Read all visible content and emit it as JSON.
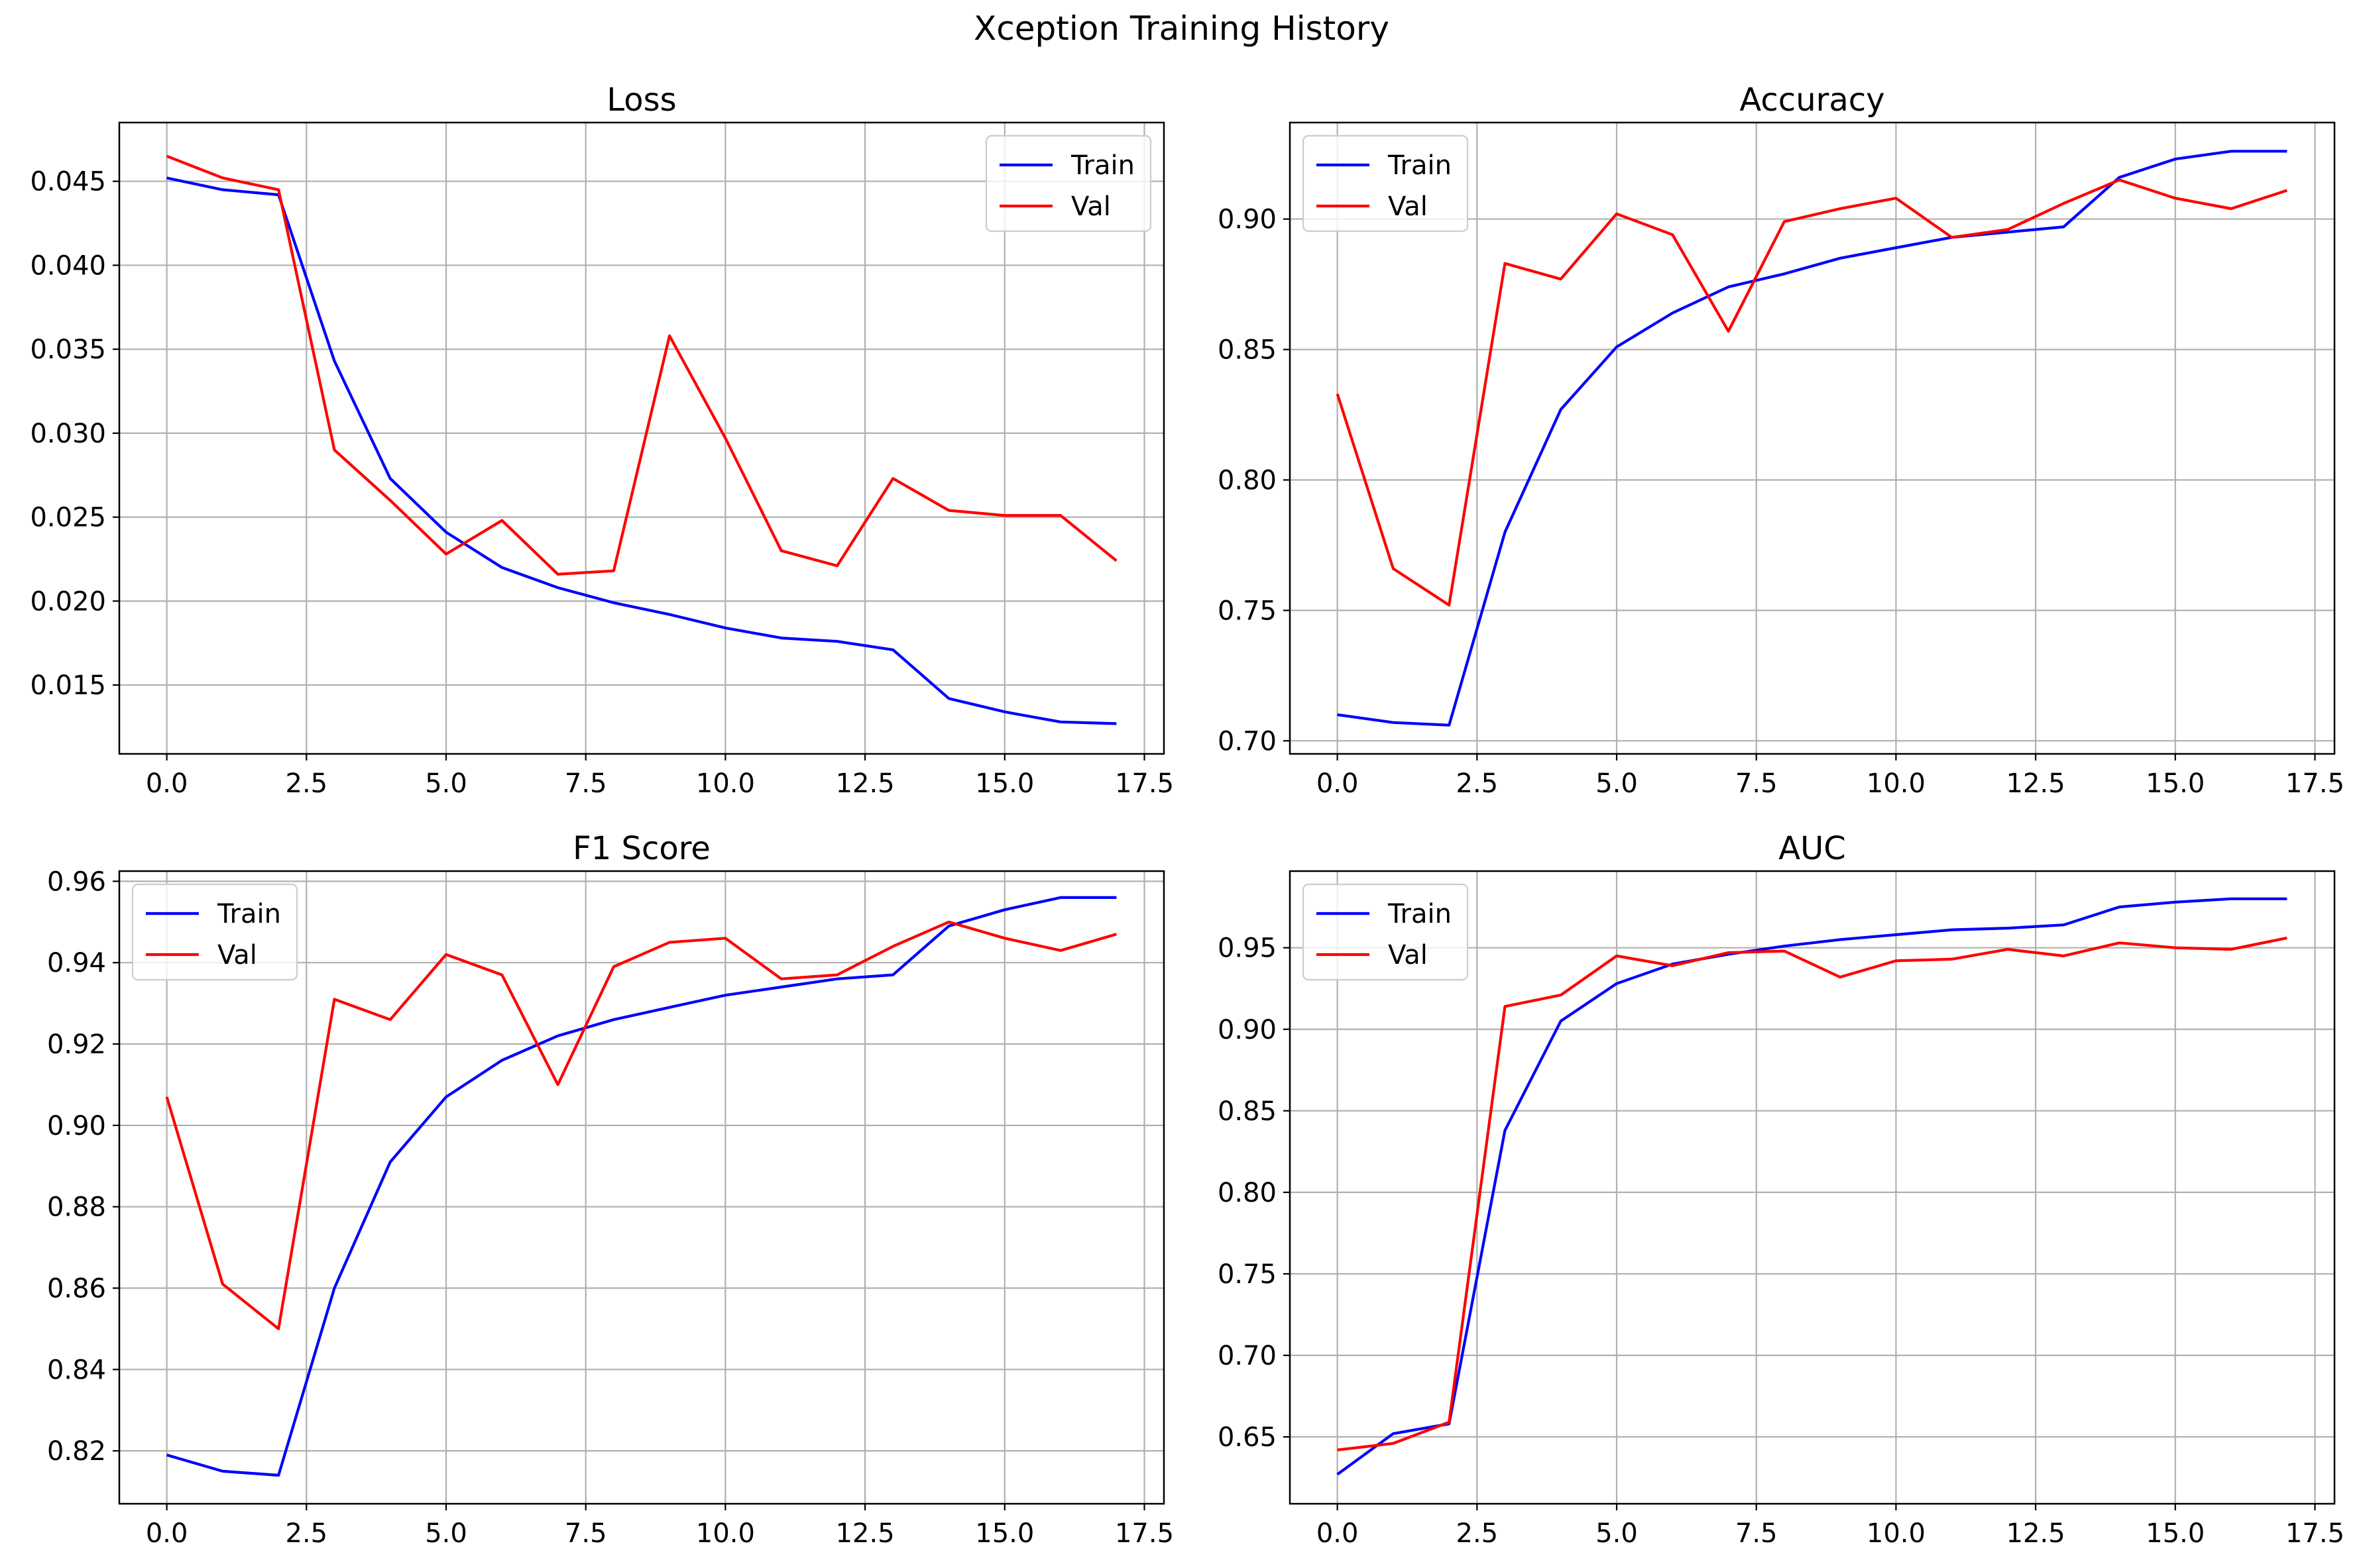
{
  "figure": {
    "title": "Xception Training History"
  },
  "chart_data": [
    {
      "type": "line",
      "title": "Loss",
      "xlabel": "",
      "ylabel": "",
      "xlim": [
        -0.85,
        17.85
      ],
      "ylim": [
        0.0109,
        0.0485
      ],
      "xticks": [
        0,
        2.5,
        5,
        7.5,
        10,
        12.5,
        15,
        17.5
      ],
      "xtick_labels": [
        "0.0",
        "2.5",
        "5.0",
        "7.5",
        "10.0",
        "12.5",
        "15.0",
        "17.5"
      ],
      "yticks": [
        0.015,
        0.02,
        0.025,
        0.03,
        0.035,
        0.04,
        0.045
      ],
      "ytick_labels": [
        "0.015",
        "0.020",
        "0.025",
        "0.030",
        "0.035",
        "0.040",
        "0.045"
      ],
      "grid": true,
      "legend": "top-right",
      "x": [
        0,
        1,
        2,
        3,
        4,
        5,
        6,
        7,
        8,
        9,
        10,
        11,
        12,
        13,
        14,
        15,
        16,
        17
      ],
      "series": [
        {
          "name": "Train",
          "color": "#0000ff",
          "values": [
            0.0452,
            0.0445,
            0.0442,
            0.0343,
            0.0273,
            0.0241,
            0.022,
            0.0208,
            0.0199,
            0.0192,
            0.0184,
            0.0178,
            0.0176,
            0.0171,
            0.0142,
            0.0134,
            0.0128,
            0.0127
          ]
        },
        {
          "name": "Val",
          "color": "#ff0000",
          "values": [
            0.0465,
            0.0452,
            0.0445,
            0.029,
            0.026,
            0.0228,
            0.0248,
            0.0216,
            0.0218,
            0.0358,
            0.0297,
            0.023,
            0.0221,
            0.0273,
            0.0254,
            0.0251,
            0.0251,
            0.0224
          ]
        }
      ]
    },
    {
      "type": "line",
      "title": "Accuracy",
      "xlabel": "",
      "ylabel": "",
      "xlim": [
        -0.85,
        17.85
      ],
      "ylim": [
        0.695,
        0.937
      ],
      "xticks": [
        0,
        2.5,
        5,
        7.5,
        10,
        12.5,
        15,
        17.5
      ],
      "xtick_labels": [
        "0.0",
        "2.5",
        "5.0",
        "7.5",
        "10.0",
        "12.5",
        "15.0",
        "17.5"
      ],
      "yticks": [
        0.7,
        0.75,
        0.8,
        0.85,
        0.9
      ],
      "ytick_labels": [
        "0.70",
        "0.75",
        "0.80",
        "0.85",
        "0.90"
      ],
      "grid": true,
      "legend": "top-left",
      "x": [
        0,
        1,
        2,
        3,
        4,
        5,
        6,
        7,
        8,
        9,
        10,
        11,
        12,
        13,
        14,
        15,
        16,
        17
      ],
      "series": [
        {
          "name": "Train",
          "color": "#0000ff",
          "values": [
            0.71,
            0.707,
            0.706,
            0.78,
            0.827,
            0.851,
            0.864,
            0.874,
            0.879,
            0.885,
            0.889,
            0.893,
            0.895,
            0.897,
            0.916,
            0.923,
            0.926,
            0.926
          ]
        },
        {
          "name": "Val",
          "color": "#ff0000",
          "values": [
            0.833,
            0.766,
            0.752,
            0.883,
            0.877,
            0.902,
            0.894,
            0.857,
            0.899,
            0.904,
            0.908,
            0.893,
            0.896,
            0.906,
            0.915,
            0.908,
            0.904,
            0.911
          ]
        }
      ]
    },
    {
      "type": "line",
      "title": "F1 Score",
      "xlabel": "",
      "ylabel": "",
      "xlim": [
        -0.85,
        17.85
      ],
      "ylim": [
        0.807,
        0.9625
      ],
      "xticks": [
        0,
        2.5,
        5,
        7.5,
        10,
        12.5,
        15,
        17.5
      ],
      "xtick_labels": [
        "0.0",
        "2.5",
        "5.0",
        "7.5",
        "10.0",
        "12.5",
        "15.0",
        "17.5"
      ],
      "yticks": [
        0.82,
        0.84,
        0.86,
        0.88,
        0.9,
        0.92,
        0.94,
        0.96
      ],
      "ytick_labels": [
        "0.82",
        "0.84",
        "0.86",
        "0.88",
        "0.90",
        "0.92",
        "0.94",
        "0.96"
      ],
      "grid": true,
      "legend": "top-left",
      "x": [
        0,
        1,
        2,
        3,
        4,
        5,
        6,
        7,
        8,
        9,
        10,
        11,
        12,
        13,
        14,
        15,
        16,
        17
      ],
      "series": [
        {
          "name": "Train",
          "color": "#0000ff",
          "values": [
            0.819,
            0.815,
            0.814,
            0.86,
            0.891,
            0.907,
            0.916,
            0.922,
            0.926,
            0.929,
            0.932,
            0.934,
            0.936,
            0.937,
            0.949,
            0.953,
            0.956,
            0.956
          ]
        },
        {
          "name": "Val",
          "color": "#ff0000",
          "values": [
            0.907,
            0.861,
            0.85,
            0.931,
            0.926,
            0.942,
            0.937,
            0.91,
            0.939,
            0.945,
            0.946,
            0.936,
            0.937,
            0.944,
            0.95,
            0.946,
            0.943,
            0.947
          ]
        }
      ]
    },
    {
      "type": "line",
      "title": "AUC",
      "xlabel": "",
      "ylabel": "",
      "xlim": [
        -0.85,
        17.85
      ],
      "ylim": [
        0.609,
        0.997
      ],
      "xticks": [
        0,
        2.5,
        5,
        7.5,
        10,
        12.5,
        15,
        17.5
      ],
      "xtick_labels": [
        "0.0",
        "2.5",
        "5.0",
        "7.5",
        "10.0",
        "12.5",
        "15.0",
        "17.5"
      ],
      "yticks": [
        0.65,
        0.7,
        0.75,
        0.8,
        0.85,
        0.9,
        0.95
      ],
      "ytick_labels": [
        "0.65",
        "0.70",
        "0.75",
        "0.80",
        "0.85",
        "0.90",
        "0.95"
      ],
      "grid": true,
      "legend": "top-left",
      "x": [
        0,
        1,
        2,
        3,
        4,
        5,
        6,
        7,
        8,
        9,
        10,
        11,
        12,
        13,
        14,
        15,
        16,
        17
      ],
      "series": [
        {
          "name": "Train",
          "color": "#0000ff",
          "values": [
            0.627,
            0.652,
            0.658,
            0.838,
            0.905,
            0.928,
            0.94,
            0.946,
            0.951,
            0.955,
            0.958,
            0.961,
            0.962,
            0.964,
            0.975,
            0.978,
            0.98,
            0.98
          ]
        },
        {
          "name": "Val",
          "color": "#ff0000",
          "values": [
            0.642,
            0.646,
            0.659,
            0.914,
            0.921,
            0.945,
            0.939,
            0.947,
            0.948,
            0.932,
            0.942,
            0.943,
            0.949,
            0.945,
            0.953,
            0.95,
            0.949,
            0.956
          ]
        }
      ]
    }
  ]
}
